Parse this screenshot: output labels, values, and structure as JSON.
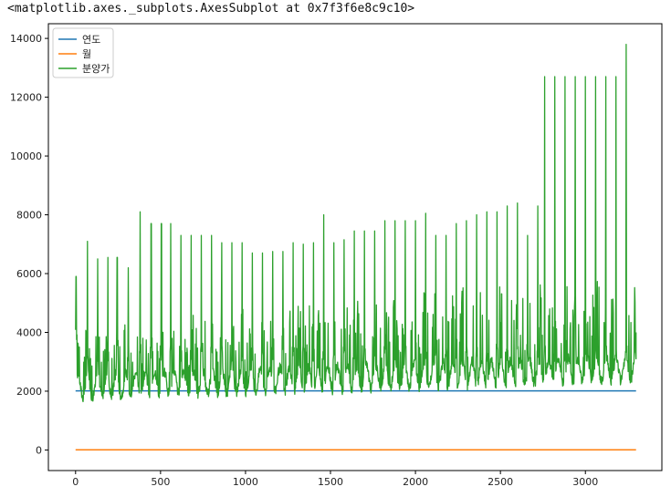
{
  "output_repr": "<matplotlib.axes._subplots.AxesSubplot at 0x7f3f6e8c9c10>",
  "chart_data": {
    "type": "line",
    "xlim": [
      -160,
      3450
    ],
    "ylim": [
      -700,
      14500
    ],
    "x_ticks": [
      0,
      500,
      1000,
      1500,
      2000,
      2500,
      3000
    ],
    "y_ticks": [
      0,
      2000,
      4000,
      6000,
      8000,
      10000,
      12000,
      14000
    ],
    "x_tick_labels": [
      "0",
      "500",
      "1000",
      "1500",
      "2000",
      "2500",
      "3000"
    ],
    "y_tick_labels": [
      "0",
      "2000",
      "4000",
      "6000",
      "8000",
      "10000",
      "12000",
      "14000"
    ],
    "grid": false,
    "legend_position": "upper-left",
    "series": [
      {
        "name": "연도",
        "color": "#1f77b4",
        "constant": 2010,
        "x_range": [
          0,
          3298
        ]
      },
      {
        "name": "월",
        "color": "#ff7f0e",
        "constant": 6,
        "x_range": [
          0,
          3298
        ]
      },
      {
        "name": "분양가",
        "color": "#2ca02c",
        "x_range": [
          0,
          3298
        ],
        "description_points": [
          [
            0,
            5600
          ],
          [
            3,
            5900
          ],
          [
            8,
            3600
          ],
          [
            15,
            2900
          ],
          [
            25,
            2400
          ],
          [
            35,
            2000
          ],
          [
            60,
            2500
          ],
          [
            70,
            7100
          ],
          [
            78,
            3200
          ],
          [
            95,
            2100
          ]
        ],
        "spike_x": [
          3,
          70,
          130,
          190,
          245,
          310,
          380,
          445,
          505,
          560,
          620,
          680,
          740,
          800,
          860,
          920,
          980,
          1040,
          1100,
          1160,
          1220,
          1280,
          1340,
          1400,
          1460,
          1520,
          1580,
          1640,
          1700,
          1760,
          1820,
          1880,
          1940,
          2000,
          2060,
          2120,
          2180,
          2240,
          2300,
          2360,
          2420,
          2480,
          2540,
          2600,
          2660,
          2720,
          2760,
          2820,
          2880,
          2940,
          3000,
          3060,
          3120,
          3180,
          3240
        ],
        "spike_peak": [
          5900,
          7100,
          6500,
          6550,
          6550,
          6200,
          8100,
          7700,
          7700,
          7700,
          7300,
          7300,
          7300,
          7300,
          7050,
          7050,
          7050,
          6700,
          6700,
          6750,
          6750,
          7050,
          7000,
          7050,
          8000,
          7050,
          7150,
          7450,
          7450,
          7450,
          7800,
          7800,
          7800,
          7800,
          8050,
          7300,
          7300,
          7700,
          7800,
          8000,
          8100,
          8100,
          8300,
          8400,
          7300,
          8300,
          12700,
          12700,
          12700,
          12700,
          12700,
          12700,
          12700,
          12700,
          13800
        ]
      }
    ]
  }
}
